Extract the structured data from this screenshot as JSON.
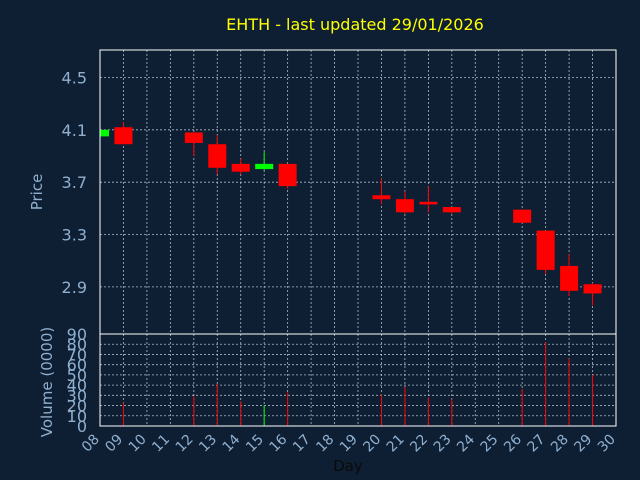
{
  "chart_data": {
    "type": "candlestick",
    "title": "EHTH - last updated 29/01/2026",
    "price_panel": {
      "ylabel": "Price",
      "ylim": [
        2.54,
        4.71
      ],
      "yticks": [
        "2.9",
        "3.3",
        "3.7",
        "4.1",
        "4.5"
      ],
      "grid": true
    },
    "volume_panel": {
      "ylabel": "Volume (0000)",
      "ylim": [
        0,
        90
      ],
      "yticks": [
        "0",
        "10",
        "20",
        "30",
        "40",
        "50",
        "60",
        "70",
        "80",
        "90"
      ],
      "grid": true
    },
    "xlabel": "Day",
    "xlim": [
      8,
      30
    ],
    "xticks": [
      "08",
      "09",
      "10",
      "11",
      "12",
      "13",
      "14",
      "15",
      "16",
      "17",
      "18",
      "19",
      "20",
      "21",
      "22",
      "23",
      "24",
      "25",
      "26",
      "27",
      "28",
      "29",
      "30"
    ],
    "colors": {
      "up": "#00ff00",
      "down": "#ff0000",
      "background": "#0f1f33",
      "title": "#ffff00",
      "axis_text": "#8fb0d0"
    },
    "candles": [
      {
        "day": 8,
        "open": 4.05,
        "high": 4.1,
        "low": 4.04,
        "close": 4.1,
        "volume": 5
      },
      {
        "day": 9,
        "open": 4.12,
        "high": 4.16,
        "low": 3.99,
        "close": 3.99,
        "volume": 23
      },
      {
        "day": 12,
        "open": 4.08,
        "high": 4.08,
        "low": 3.9,
        "close": 4.0,
        "volume": 29
      },
      {
        "day": 13,
        "open": 3.99,
        "high": 4.06,
        "low": 3.76,
        "close": 3.81,
        "volume": 41
      },
      {
        "day": 14,
        "open": 3.84,
        "high": 3.88,
        "low": 3.76,
        "close": 3.78,
        "volume": 24
      },
      {
        "day": 15,
        "open": 3.8,
        "high": 3.93,
        "low": 3.79,
        "close": 3.84,
        "volume": 20
      },
      {
        "day": 16,
        "open": 3.84,
        "high": 3.84,
        "low": 3.65,
        "close": 3.67,
        "volume": 33
      },
      {
        "day": 20,
        "open": 3.6,
        "high": 3.73,
        "low": 3.53,
        "close": 3.57,
        "volume": 31
      },
      {
        "day": 21,
        "open": 3.57,
        "high": 3.63,
        "low": 3.46,
        "close": 3.47,
        "volume": 38
      },
      {
        "day": 22,
        "open": 3.55,
        "high": 3.67,
        "low": 3.47,
        "close": 3.53,
        "volume": 28
      },
      {
        "day": 23,
        "open": 3.51,
        "high": 3.51,
        "low": 3.46,
        "close": 3.47,
        "volume": 26
      },
      {
        "day": 26,
        "open": 3.49,
        "high": 3.49,
        "low": 3.39,
        "close": 3.39,
        "volume": 36
      },
      {
        "day": 27,
        "open": 3.33,
        "high": 3.33,
        "low": 3.0,
        "close": 3.03,
        "volume": 82
      },
      {
        "day": 28,
        "open": 3.06,
        "high": 3.15,
        "low": 2.83,
        "close": 2.87,
        "volume": 66
      },
      {
        "day": 29,
        "open": 2.92,
        "high": 2.93,
        "low": 2.76,
        "close": 2.85,
        "volume": 50
      }
    ]
  }
}
